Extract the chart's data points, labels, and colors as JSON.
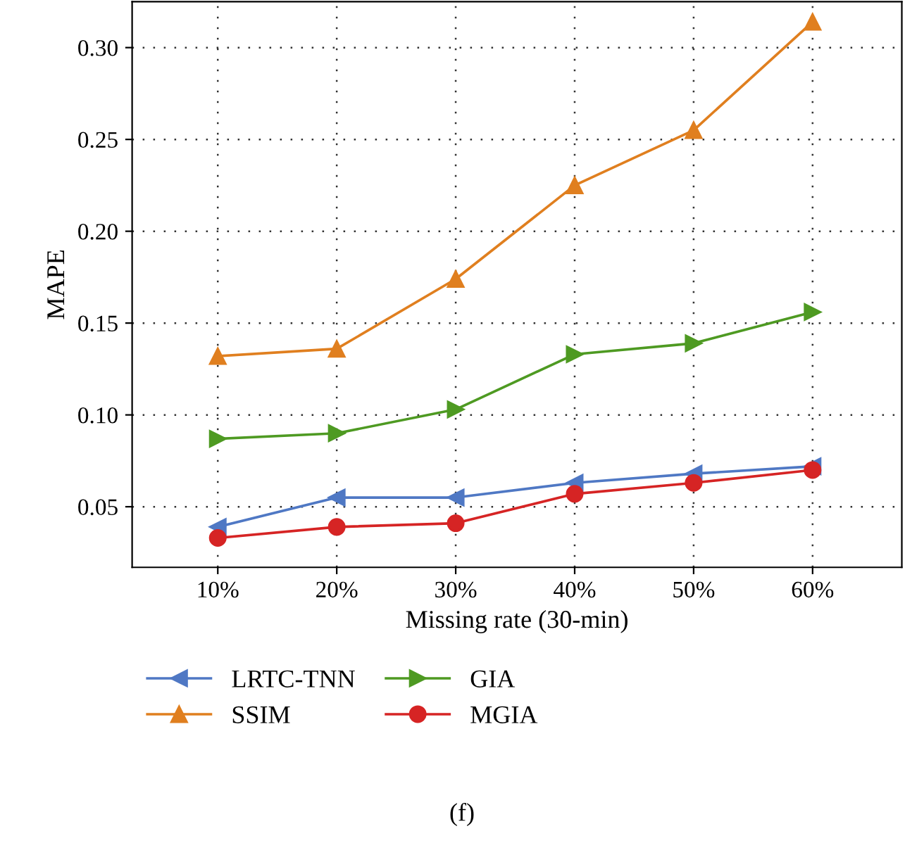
{
  "chart_data": {
    "type": "line",
    "xlabel": "Missing rate (30-min)",
    "ylabel": "MAPE",
    "categories": [
      "10%",
      "20%",
      "30%",
      "40%",
      "50%",
      "60%"
    ],
    "series": [
      {
        "name": "LRTC-TNN",
        "color": "#4f78c4",
        "marker": "triangle_left",
        "values": [
          0.039,
          0.055,
          0.055,
          0.063,
          0.068,
          0.072
        ]
      },
      {
        "name": "SSIM",
        "color": "#e07f1f",
        "marker": "triangle",
        "values": [
          0.132,
          0.136,
          0.174,
          0.225,
          0.255,
          0.314
        ]
      },
      {
        "name": "GIA",
        "color": "#4e9a22",
        "marker": "triangle_right",
        "values": [
          0.087,
          0.09,
          0.103,
          0.133,
          0.139,
          0.156
        ]
      },
      {
        "name": "MGIA",
        "color": "#d62424",
        "marker": "circle",
        "values": [
          0.033,
          0.039,
          0.041,
          0.057,
          0.063,
          0.07
        ]
      }
    ],
    "ylim": [
      0.017,
      0.325
    ],
    "yticks": [
      {
        "value": 0.05,
        "label": "0.05"
      },
      {
        "value": 0.1,
        "label": "0.10"
      },
      {
        "value": 0.15,
        "label": "0.15"
      },
      {
        "value": 0.2,
        "label": "0.20"
      },
      {
        "value": 0.25,
        "label": "0.25"
      },
      {
        "value": 0.3,
        "label": "0.30"
      }
    ],
    "grid": true,
    "line_style": "solid",
    "legend": "bottom",
    "annotations": [
      "(f)"
    ]
  }
}
